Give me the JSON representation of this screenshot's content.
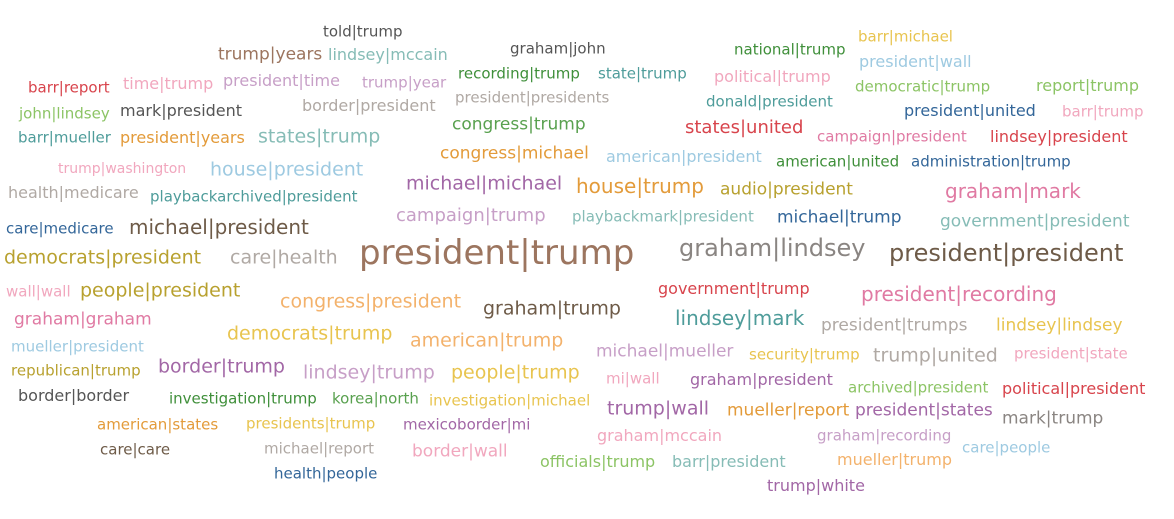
{
  "chart_data": {
    "type": "wordcloud",
    "palette": {
      "brown": "#9c755f",
      "grey": "#8a8582",
      "gold": "#b8a12f",
      "orange": "#e39b3a",
      "red": "#d8444c",
      "pink": "#e07aa3",
      "lightpink": "#f1a7be",
      "purple": "#a267a6",
      "lilac": "#c79fc7",
      "blue": "#4e79a7",
      "teal": "#4e9c9a",
      "lightteal": "#86bcb6",
      "green": "#59a14f",
      "lightgreen": "#8cc465",
      "lightblue": "#9ecae1",
      "peach": "#f3b26c",
      "yellow": "#e8c44f",
      "darkbrown": "#6e5b48",
      "dark": "#555555",
      "dgreen": "#3f8f3a",
      "dblue": "#336699",
      "silver": "#b0a9a4"
    },
    "words": [
      {
        "text": "president|trump",
        "weight": 34,
        "color": "brown"
      },
      {
        "text": "graham|lindsey",
        "weight": 24,
        "color": "grey"
      },
      {
        "text": "president|president",
        "weight": 24,
        "color": "darkbrown"
      },
      {
        "text": "told|trump",
        "weight": 15,
        "color": "dark"
      },
      {
        "text": "trump|years",
        "weight": 17,
        "color": "brown"
      },
      {
        "text": "lindsey|mccain",
        "weight": 16,
        "color": "lightteal"
      },
      {
        "text": "graham|john",
        "weight": 15,
        "color": "dark"
      },
      {
        "text": "national|trump",
        "weight": 15,
        "color": "dgreen"
      },
      {
        "text": "barr|michael",
        "weight": 15,
        "color": "yellow"
      },
      {
        "text": "recording|trump",
        "weight": 15,
        "color": "dgreen"
      },
      {
        "text": "state|trump",
        "weight": 15,
        "color": "teal"
      },
      {
        "text": "political|trump",
        "weight": 16,
        "color": "lightpink"
      },
      {
        "text": "president|wall",
        "weight": 16,
        "color": "lightblue"
      },
      {
        "text": "barr|report",
        "weight": 15,
        "color": "red"
      },
      {
        "text": "time|trump",
        "weight": 16,
        "color": "lightpink"
      },
      {
        "text": "president|time",
        "weight": 16,
        "color": "lilac"
      },
      {
        "text": "trump|year",
        "weight": 15,
        "color": "lilac"
      },
      {
        "text": "president|presidents",
        "weight": 15,
        "color": "silver"
      },
      {
        "text": "democratic|trump",
        "weight": 15,
        "color": "lightgreen"
      },
      {
        "text": "report|trump",
        "weight": 16,
        "color": "lightgreen"
      },
      {
        "text": "john|lindsey",
        "weight": 15,
        "color": "lightgreen"
      },
      {
        "text": "mark|president",
        "weight": 16,
        "color": "dark"
      },
      {
        "text": "border|president",
        "weight": 16,
        "color": "silver"
      },
      {
        "text": "donald|president",
        "weight": 15,
        "color": "teal"
      },
      {
        "text": "president|united",
        "weight": 16,
        "color": "dblue"
      },
      {
        "text": "barr|trump",
        "weight": 15,
        "color": "lightpink"
      },
      {
        "text": "congress|trump",
        "weight": 17,
        "color": "green"
      },
      {
        "text": "states|united",
        "weight": 18,
        "color": "red"
      },
      {
        "text": "barr|mueller",
        "weight": 15,
        "color": "teal"
      },
      {
        "text": "president|years",
        "weight": 16,
        "color": "orange"
      },
      {
        "text": "states|trump",
        "weight": 19,
        "color": "lightteal"
      },
      {
        "text": "campaign|president",
        "weight": 15,
        "color": "pink"
      },
      {
        "text": "lindsey|president",
        "weight": 16,
        "color": "red"
      },
      {
        "text": "congress|michael",
        "weight": 17,
        "color": "orange"
      },
      {
        "text": "american|president",
        "weight": 16,
        "color": "lightblue"
      },
      {
        "text": "american|united",
        "weight": 15,
        "color": "dgreen"
      },
      {
        "text": "administration|trump",
        "weight": 15,
        "color": "dblue"
      },
      {
        "text": "trump|washington",
        "weight": 14,
        "color": "lightpink"
      },
      {
        "text": "house|president",
        "weight": 19,
        "color": "lightblue"
      },
      {
        "text": "michael|michael",
        "weight": 19,
        "color": "purple"
      },
      {
        "text": "house|trump",
        "weight": 20,
        "color": "orange"
      },
      {
        "text": "audio|president",
        "weight": 17,
        "color": "gold"
      },
      {
        "text": "graham|mark",
        "weight": 20,
        "color": "pink"
      },
      {
        "text": "health|medicare",
        "weight": 16,
        "color": "silver"
      },
      {
        "text": "playbackarchived|president",
        "weight": 15,
        "color": "teal"
      },
      {
        "text": "campaign|trump",
        "weight": 18,
        "color": "lilac"
      },
      {
        "text": "playbackmark|president",
        "weight": 15,
        "color": "lightteal"
      },
      {
        "text": "michael|trump",
        "weight": 17,
        "color": "dblue"
      },
      {
        "text": "government|president",
        "weight": 17,
        "color": "lightteal"
      },
      {
        "text": "care|medicare",
        "weight": 15,
        "color": "dblue"
      },
      {
        "text": "michael|president",
        "weight": 20,
        "color": "darkbrown"
      },
      {
        "text": "democrats|president",
        "weight": 19,
        "color": "gold"
      },
      {
        "text": "care|health",
        "weight": 19,
        "color": "silver"
      },
      {
        "text": "wall|wall",
        "weight": 15,
        "color": "lightpink"
      },
      {
        "text": "people|president",
        "weight": 19,
        "color": "gold"
      },
      {
        "text": "government|trump",
        "weight": 16,
        "color": "red"
      },
      {
        "text": "president|recording",
        "weight": 20,
        "color": "pink"
      },
      {
        "text": "congress|president",
        "weight": 19,
        "color": "peach"
      },
      {
        "text": "graham|trump",
        "weight": 19,
        "color": "darkbrown"
      },
      {
        "text": "graham|graham",
        "weight": 17,
        "color": "pink"
      },
      {
        "text": "lindsey|mark",
        "weight": 20,
        "color": "teal"
      },
      {
        "text": "president|trumps",
        "weight": 17,
        "color": "silver"
      },
      {
        "text": "lindsey|lindsey",
        "weight": 17,
        "color": "yellow"
      },
      {
        "text": "democrats|trump",
        "weight": 19,
        "color": "yellow"
      },
      {
        "text": "american|trump",
        "weight": 19,
        "color": "peach"
      },
      {
        "text": "mueller|president",
        "weight": 15,
        "color": "lightblue"
      },
      {
        "text": "michael|mueller",
        "weight": 17,
        "color": "lilac"
      },
      {
        "text": "security|trump",
        "weight": 15,
        "color": "yellow"
      },
      {
        "text": "trump|united",
        "weight": 19,
        "color": "silver"
      },
      {
        "text": "president|state",
        "weight": 15,
        "color": "lightpink"
      },
      {
        "text": "republican|trump",
        "weight": 15,
        "color": "gold"
      },
      {
        "text": "border|trump",
        "weight": 19,
        "color": "purple"
      },
      {
        "text": "lindsey|trump",
        "weight": 19,
        "color": "lilac"
      },
      {
        "text": "people|trump",
        "weight": 19,
        "color": "yellow"
      },
      {
        "text": "mi|wall",
        "weight": 15,
        "color": "lightpink"
      },
      {
        "text": "graham|president",
        "weight": 16,
        "color": "purple"
      },
      {
        "text": "archived|president",
        "weight": 15,
        "color": "lightgreen"
      },
      {
        "text": "political|president",
        "weight": 16,
        "color": "red"
      },
      {
        "text": "border|border",
        "weight": 16,
        "color": "dark"
      },
      {
        "text": "investigation|trump",
        "weight": 15,
        "color": "dgreen"
      },
      {
        "text": "korea|north",
        "weight": 15,
        "color": "green"
      },
      {
        "text": "investigation|michael",
        "weight": 15,
        "color": "yellow"
      },
      {
        "text": "trump|wall",
        "weight": 19,
        "color": "purple"
      },
      {
        "text": "mueller|report",
        "weight": 17,
        "color": "orange"
      },
      {
        "text": "president|states",
        "weight": 17,
        "color": "purple"
      },
      {
        "text": "mark|trump",
        "weight": 17,
        "color": "grey"
      },
      {
        "text": "american|states",
        "weight": 15,
        "color": "orange"
      },
      {
        "text": "presidents|trump",
        "weight": 15,
        "color": "yellow"
      },
      {
        "text": "mexicoborder|mi",
        "weight": 15,
        "color": "purple"
      },
      {
        "text": "graham|mccain",
        "weight": 16,
        "color": "lightpink"
      },
      {
        "text": "graham|recording",
        "weight": 15,
        "color": "lilac"
      },
      {
        "text": "care|care",
        "weight": 15,
        "color": "darkbrown"
      },
      {
        "text": "michael|report",
        "weight": 15,
        "color": "silver"
      },
      {
        "text": "border|wall",
        "weight": 17,
        "color": "lightpink"
      },
      {
        "text": "officials|trump",
        "weight": 16,
        "color": "lightgreen"
      },
      {
        "text": "barr|president",
        "weight": 16,
        "color": "lightteal"
      },
      {
        "text": "mueller|trump",
        "weight": 16,
        "color": "peach"
      },
      {
        "text": "care|people",
        "weight": 15,
        "color": "lightblue"
      },
      {
        "text": "health|people",
        "weight": 15,
        "color": "dblue"
      },
      {
        "text": "trump|white",
        "weight": 16,
        "color": "purple"
      }
    ]
  }
}
